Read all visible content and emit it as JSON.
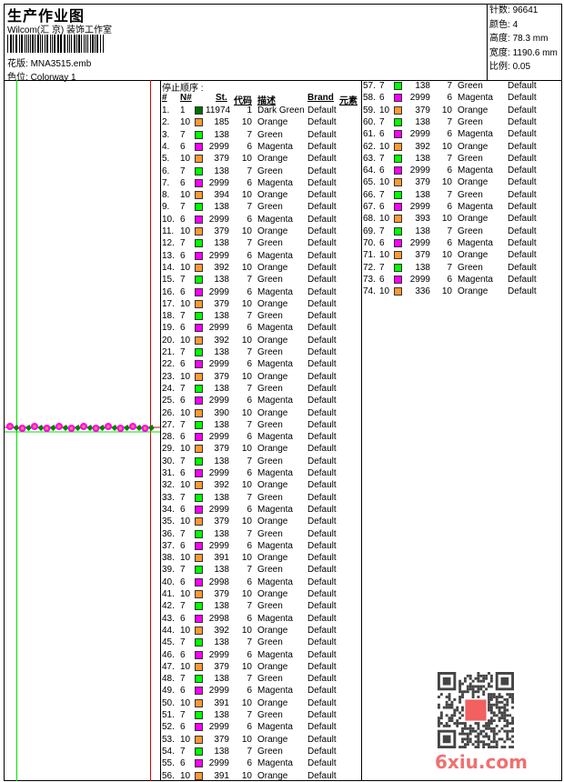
{
  "header": {
    "title": "生产作业图",
    "company": "Wilcom(汇 京) 装饰工作室",
    "file_label": "花版:",
    "file": "MNA3515.emb",
    "colorway_label": "色位:",
    "colorway": "Colorway 1"
  },
  "info": {
    "stitches_label": "针数:",
    "stitches": "96641",
    "colors_label": "颜色:",
    "colors": "4",
    "height_label": "高度:",
    "height": "78.3 mm",
    "width_label": "宽度:",
    "width": "1190.6 mm",
    "scale_label": "比例:",
    "scale": "0.05"
  },
  "table": {
    "title": "停止顺序 :",
    "headers": [
      "#",
      "N#",
      "St.",
      "代码",
      "描述",
      "Brand",
      "元素"
    ]
  },
  "colors": {
    "Dark Green": "#007000",
    "Orange": "#ff9933",
    "Green": "#00ff00",
    "Magenta": "#ff00ff"
  },
  "rows": [
    [
      1,
      1,
      11974,
      1,
      "Dark Green",
      "Default"
    ],
    [
      2,
      10,
      185,
      10,
      "Orange",
      "Default"
    ],
    [
      3,
      7,
      138,
      7,
      "Green",
      "Default"
    ],
    [
      4,
      6,
      2999,
      6,
      "Magenta",
      "Default"
    ],
    [
      5,
      10,
      379,
      10,
      "Orange",
      "Default"
    ],
    [
      6,
      7,
      138,
      7,
      "Green",
      "Default"
    ],
    [
      7,
      6,
      2999,
      6,
      "Magenta",
      "Default"
    ],
    [
      8,
      10,
      394,
      10,
      "Orange",
      "Default"
    ],
    [
      9,
      7,
      138,
      7,
      "Green",
      "Default"
    ],
    [
      10,
      6,
      2999,
      6,
      "Magenta",
      "Default"
    ],
    [
      11,
      10,
      379,
      10,
      "Orange",
      "Default"
    ],
    [
      12,
      7,
      138,
      7,
      "Green",
      "Default"
    ],
    [
      13,
      6,
      2999,
      6,
      "Magenta",
      "Default"
    ],
    [
      14,
      10,
      392,
      10,
      "Orange",
      "Default"
    ],
    [
      15,
      7,
      138,
      7,
      "Green",
      "Default"
    ],
    [
      16,
      6,
      2999,
      6,
      "Magenta",
      "Default"
    ],
    [
      17,
      10,
      379,
      10,
      "Orange",
      "Default"
    ],
    [
      18,
      7,
      138,
      7,
      "Green",
      "Default"
    ],
    [
      19,
      6,
      2999,
      6,
      "Magenta",
      "Default"
    ],
    [
      20,
      10,
      392,
      10,
      "Orange",
      "Default"
    ],
    [
      21,
      7,
      138,
      7,
      "Green",
      "Default"
    ],
    [
      22,
      6,
      2999,
      6,
      "Magenta",
      "Default"
    ],
    [
      23,
      10,
      379,
      10,
      "Orange",
      "Default"
    ],
    [
      24,
      7,
      138,
      7,
      "Green",
      "Default"
    ],
    [
      25,
      6,
      2999,
      6,
      "Magenta",
      "Default"
    ],
    [
      26,
      10,
      390,
      10,
      "Orange",
      "Default"
    ],
    [
      27,
      7,
      138,
      7,
      "Green",
      "Default"
    ],
    [
      28,
      6,
      2999,
      6,
      "Magenta",
      "Default"
    ],
    [
      29,
      10,
      379,
      10,
      "Orange",
      "Default"
    ],
    [
      30,
      7,
      138,
      7,
      "Green",
      "Default"
    ],
    [
      31,
      6,
      2999,
      6,
      "Magenta",
      "Default"
    ],
    [
      32,
      10,
      392,
      10,
      "Orange",
      "Default"
    ],
    [
      33,
      7,
      138,
      7,
      "Green",
      "Default"
    ],
    [
      34,
      6,
      2999,
      6,
      "Magenta",
      "Default"
    ],
    [
      35,
      10,
      379,
      10,
      "Orange",
      "Default"
    ],
    [
      36,
      7,
      138,
      7,
      "Green",
      "Default"
    ],
    [
      37,
      6,
      2999,
      6,
      "Magenta",
      "Default"
    ],
    [
      38,
      10,
      391,
      10,
      "Orange",
      "Default"
    ],
    [
      39,
      7,
      138,
      7,
      "Green",
      "Default"
    ],
    [
      40,
      6,
      2998,
      6,
      "Magenta",
      "Default"
    ],
    [
      41,
      10,
      379,
      10,
      "Orange",
      "Default"
    ],
    [
      42,
      7,
      138,
      7,
      "Green",
      "Default"
    ],
    [
      43,
      6,
      2998,
      6,
      "Magenta",
      "Default"
    ],
    [
      44,
      10,
      392,
      10,
      "Orange",
      "Default"
    ],
    [
      45,
      7,
      138,
      7,
      "Green",
      "Default"
    ],
    [
      46,
      6,
      2999,
      6,
      "Magenta",
      "Default"
    ],
    [
      47,
      10,
      379,
      10,
      "Orange",
      "Default"
    ],
    [
      48,
      7,
      138,
      7,
      "Green",
      "Default"
    ],
    [
      49,
      6,
      2999,
      6,
      "Magenta",
      "Default"
    ],
    [
      50,
      10,
      391,
      10,
      "Orange",
      "Default"
    ],
    [
      51,
      7,
      138,
      7,
      "Green",
      "Default"
    ],
    [
      52,
      6,
      2999,
      6,
      "Magenta",
      "Default"
    ],
    [
      53,
      10,
      379,
      10,
      "Orange",
      "Default"
    ],
    [
      54,
      7,
      138,
      7,
      "Green",
      "Default"
    ],
    [
      55,
      6,
      2999,
      6,
      "Magenta",
      "Default"
    ],
    [
      56,
      10,
      391,
      10,
      "Orange",
      "Default"
    ],
    [
      57,
      7,
      138,
      7,
      "Green",
      "Default"
    ],
    [
      58,
      6,
      2999,
      6,
      "Magenta",
      "Default"
    ],
    [
      59,
      10,
      379,
      10,
      "Orange",
      "Default"
    ],
    [
      60,
      7,
      138,
      7,
      "Green",
      "Default"
    ],
    [
      61,
      6,
      2999,
      6,
      "Magenta",
      "Default"
    ],
    [
      62,
      10,
      392,
      10,
      "Orange",
      "Default"
    ],
    [
      63,
      7,
      138,
      7,
      "Green",
      "Default"
    ],
    [
      64,
      6,
      2999,
      6,
      "Magenta",
      "Default"
    ],
    [
      65,
      10,
      379,
      10,
      "Orange",
      "Default"
    ],
    [
      66,
      7,
      138,
      7,
      "Green",
      "Default"
    ],
    [
      67,
      6,
      2999,
      6,
      "Magenta",
      "Default"
    ],
    [
      68,
      10,
      393,
      10,
      "Orange",
      "Default"
    ],
    [
      69,
      7,
      138,
      7,
      "Green",
      "Default"
    ],
    [
      70,
      6,
      2999,
      6,
      "Magenta",
      "Default"
    ],
    [
      71,
      10,
      379,
      10,
      "Orange",
      "Default"
    ],
    [
      72,
      7,
      138,
      7,
      "Green",
      "Default"
    ],
    [
      73,
      6,
      2999,
      6,
      "Magenta",
      "Default"
    ],
    [
      74,
      10,
      336,
      10,
      "Orange",
      "Default"
    ]
  ],
  "watermark": {
    "qr_stamp": "以图版",
    "logo": "6xiu.com"
  }
}
